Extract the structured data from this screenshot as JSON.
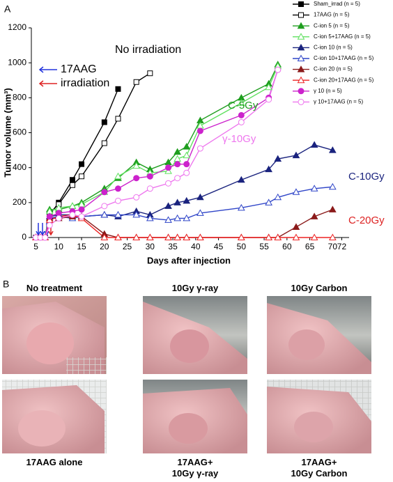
{
  "chart_data": {
    "type": "line",
    "panel_label": "A",
    "x_label": "Days after injection",
    "y_label": "Tumor volume (mm³)",
    "xlim": [
      4,
      73
    ],
    "xticks": [
      5,
      10,
      15,
      20,
      25,
      30,
      35,
      40,
      45,
      50,
      55,
      60,
      65,
      70,
      72
    ],
    "ylim": [
      0,
      1200
    ],
    "yticks": [
      0,
      200,
      400,
      600,
      800,
      1000,
      1200
    ],
    "series": [
      {
        "name": "Sham_irrad (n = 5)",
        "color": "#000000",
        "marker": "square",
        "filled": true,
        "x": [
          5,
          6,
          7,
          8,
          10,
          13,
          15,
          20,
          23
        ],
        "values": [
          0,
          0,
          0,
          130,
          200,
          330,
          420,
          660,
          850
        ]
      },
      {
        "name": "17AAG (n = 5)",
        "color": "#000000",
        "marker": "square",
        "filled": false,
        "x": [
          5,
          6,
          7,
          8,
          10,
          13,
          15,
          20,
          23,
          27,
          30
        ],
        "values": [
          0,
          0,
          0,
          140,
          190,
          300,
          350,
          540,
          680,
          890,
          940
        ]
      },
      {
        "name": "C-ion 5 (n = 5)",
        "color": "#1f9e1f",
        "marker": "triangle",
        "filled": true,
        "x": [
          5,
          6,
          7,
          8,
          10,
          13,
          15,
          20,
          23,
          27,
          30,
          34,
          36,
          38,
          41,
          50,
          56,
          58
        ],
        "values": [
          0,
          0,
          0,
          160,
          160,
          180,
          200,
          280,
          340,
          430,
          390,
          430,
          490,
          520,
          670,
          800,
          880,
          990
        ]
      },
      {
        "name": "C-ion 5+17AAG (n = 5)",
        "color": "#5fe05f",
        "marker": "triangle",
        "filled": false,
        "x": [
          5,
          6,
          7,
          8,
          10,
          13,
          15,
          20,
          23,
          27,
          30,
          34,
          36,
          38,
          41,
          50,
          56,
          58
        ],
        "values": [
          0,
          0,
          0,
          150,
          170,
          180,
          190,
          260,
          350,
          410,
          370,
          380,
          450,
          470,
          640,
          770,
          860,
          980
        ]
      },
      {
        "name": "C-ion 10 (n = 5)",
        "color": "#1a237e",
        "marker": "triangle",
        "filled": true,
        "x": [
          5,
          6,
          7,
          8,
          10,
          13,
          15,
          20,
          23,
          27,
          30,
          34,
          36,
          38,
          41,
          50,
          56,
          58,
          62,
          66,
          70
        ],
        "values": [
          0,
          0,
          0,
          120,
          130,
          130,
          120,
          130,
          120,
          150,
          130,
          180,
          200,
          210,
          230,
          330,
          390,
          450,
          470,
          530,
          500
        ]
      },
      {
        "name": "C-ion 10+17AAG (n = 5)",
        "color": "#2f45c8",
        "marker": "triangle",
        "filled": false,
        "x": [
          5,
          6,
          7,
          8,
          10,
          13,
          15,
          20,
          23,
          27,
          30,
          34,
          36,
          38,
          41,
          50,
          56,
          58,
          62,
          66,
          70
        ],
        "values": [
          0,
          0,
          0,
          110,
          120,
          110,
          120,
          130,
          130,
          130,
          110,
          100,
          110,
          110,
          140,
          170,
          200,
          230,
          260,
          280,
          290
        ]
      },
      {
        "name": "C-ion 20 (n = 5)",
        "color": "#8b1a1a",
        "marker": "triangle",
        "filled": true,
        "x": [
          5,
          6,
          7,
          8,
          10,
          13,
          15,
          20,
          23,
          27,
          30,
          34,
          36,
          38,
          41,
          50,
          56,
          58,
          62,
          66,
          70
        ],
        "values": [
          0,
          0,
          0,
          110,
          110,
          120,
          120,
          20,
          0,
          0,
          0,
          0,
          0,
          0,
          0,
          0,
          0,
          0,
          60,
          120,
          160
        ]
      },
      {
        "name": "C-ion 20+17AAG (n = 5)",
        "color": "#ee2222",
        "marker": "triangle",
        "filled": false,
        "x": [
          5,
          6,
          7,
          8,
          10,
          13,
          15,
          20,
          23,
          27,
          30,
          34,
          36,
          38,
          41,
          50,
          56,
          58,
          62,
          66,
          70
        ],
        "values": [
          0,
          0,
          0,
          100,
          120,
          130,
          110,
          0,
          0,
          0,
          0,
          0,
          0,
          0,
          0,
          0,
          0,
          0,
          0,
          0,
          0
        ]
      },
      {
        "name": "γ 10 (n = 5)",
        "color": "#cc22cc",
        "marker": "circle",
        "filled": true,
        "x": [
          5,
          6,
          7,
          8,
          10,
          13,
          15,
          20,
          23,
          27,
          30,
          34,
          36,
          38,
          41,
          50,
          56,
          58
        ],
        "values": [
          0,
          0,
          0,
          120,
          140,
          150,
          160,
          260,
          280,
          340,
          350,
          400,
          420,
          420,
          610,
          700,
          800,
          960
        ]
      },
      {
        "name": "γ 10+17AAG (n = 5)",
        "color": "#ee77ee",
        "marker": "circle",
        "filled": false,
        "x": [
          5,
          6,
          7,
          8,
          10,
          13,
          15,
          20,
          23,
          27,
          30,
          34,
          36,
          38,
          41,
          50,
          56,
          58
        ],
        "values": [
          0,
          0,
          0,
          70,
          110,
          130,
          120,
          180,
          210,
          230,
          280,
          310,
          340,
          370,
          510,
          660,
          790,
          960
        ]
      }
    ],
    "annotations": [
      {
        "text": "No irradiation",
        "color": "#000000"
      },
      {
        "text": "C-5Gy",
        "color": "#1f9e1f"
      },
      {
        "text": "γ-10Gy",
        "color": "#ee77ee"
      },
      {
        "text": "C-10Gy",
        "color": "#1a237e"
      },
      {
        "text": "C-20Gy",
        "color": "#dd2222"
      },
      {
        "text": "17AAG",
        "color": "#000000"
      },
      {
        "text": "irradiation",
        "color": "#000000"
      }
    ]
  },
  "panel_b": {
    "label": "B",
    "photos": [
      {
        "caption": "No treatment"
      },
      {
        "caption": "10Gy γ-ray"
      },
      {
        "caption": "10Gy Carbon"
      },
      {
        "caption": "17AAG alone"
      },
      {
        "caption": "17AAG+\n10Gy γ-ray"
      },
      {
        "caption": "17AAG+\n10Gy Carbon"
      }
    ]
  }
}
